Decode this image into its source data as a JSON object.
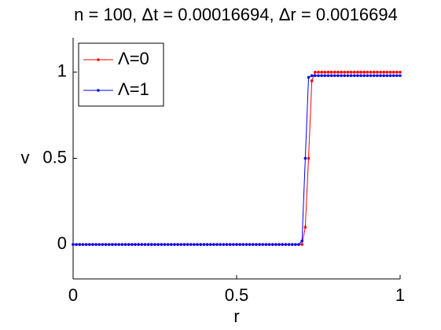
{
  "chart_data": {
    "type": "line",
    "title": "n = 100, Δt = 0.00016694, Δr = 0.0016694",
    "x_label": "r",
    "y_label": "v",
    "x": [
      0,
      0.01,
      0.02,
      0.03,
      0.04,
      0.05,
      0.06,
      0.07,
      0.08,
      0.09,
      0.1,
      0.11,
      0.12,
      0.13,
      0.14,
      0.15,
      0.16,
      0.17,
      0.18,
      0.19,
      0.2,
      0.21,
      0.22,
      0.23,
      0.24,
      0.25,
      0.26,
      0.27,
      0.28,
      0.29,
      0.3,
      0.31,
      0.32,
      0.33,
      0.34,
      0.35,
      0.36,
      0.37,
      0.38,
      0.39,
      0.4,
      0.41,
      0.42,
      0.43,
      0.44,
      0.45,
      0.46,
      0.47,
      0.48,
      0.49,
      0.5,
      0.51,
      0.52,
      0.53,
      0.54,
      0.55,
      0.56,
      0.57,
      0.58,
      0.59,
      0.6,
      0.61,
      0.62,
      0.63,
      0.64,
      0.65,
      0.66,
      0.67,
      0.68,
      0.69,
      0.7,
      0.71,
      0.72,
      0.73,
      0.74,
      0.75,
      0.76,
      0.77,
      0.78,
      0.79,
      0.8,
      0.81,
      0.82,
      0.83,
      0.84,
      0.85,
      0.86,
      0.87,
      0.88,
      0.89,
      0.9,
      0.91,
      0.92,
      0.93,
      0.94,
      0.95,
      0.96,
      0.97,
      0.98,
      0.99,
      1
    ],
    "series": [
      {
        "name": "Λ=0",
        "color": "#ff0000",
        "values": [
          0,
          0,
          0,
          0,
          0,
          0,
          0,
          0,
          0,
          0,
          0,
          0,
          0,
          0,
          0,
          0,
          0,
          0,
          0,
          0,
          0,
          0,
          0,
          0,
          0,
          0,
          0,
          0,
          0,
          0,
          0,
          0,
          0,
          0,
          0,
          0,
          0,
          0,
          0,
          0,
          0,
          0,
          0,
          0,
          0,
          0,
          0,
          0,
          0,
          0,
          0,
          0,
          0,
          0,
          0,
          0,
          0,
          0,
          0,
          0,
          0,
          0,
          0,
          0,
          0,
          0,
          0,
          0,
          0,
          0,
          0,
          0.1,
          0.5,
          0.95,
          1,
          1,
          1,
          1,
          1,
          1,
          1,
          1,
          1,
          1,
          1,
          1,
          1,
          1,
          1,
          1,
          1,
          1,
          1,
          1,
          1,
          1,
          1,
          1,
          1,
          1,
          1
        ]
      },
      {
        "name": "Λ=1",
        "color": "#0000ff",
        "values": [
          0,
          0,
          0,
          0,
          0,
          0,
          0,
          0,
          0,
          0,
          0,
          0,
          0,
          0,
          0,
          0,
          0,
          0,
          0,
          0,
          0,
          0,
          0,
          0,
          0,
          0,
          0,
          0,
          0,
          0,
          0,
          0,
          0,
          0,
          0,
          0,
          0,
          0,
          0,
          0,
          0,
          0,
          0,
          0,
          0,
          0,
          0,
          0,
          0,
          0,
          0,
          0,
          0,
          0,
          0,
          0,
          0,
          0,
          0,
          0,
          0,
          0,
          0,
          0,
          0,
          0,
          0,
          0,
          0,
          0,
          0.02,
          0.5,
          0.97,
          0.98,
          0.98,
          0.98,
          0.98,
          0.98,
          0.98,
          0.98,
          0.98,
          0.98,
          0.98,
          0.98,
          0.98,
          0.98,
          0.98,
          0.98,
          0.98,
          0.98,
          0.98,
          0.98,
          0.98,
          0.98,
          0.98,
          0.98,
          0.98,
          0.98,
          0.98,
          0.98,
          0.98
        ]
      }
    ],
    "xlim": [
      0,
      1
    ],
    "xticks": [
      0,
      0.5,
      1
    ],
    "ylim": [
      -0.2,
      1.2
    ],
    "yticks": [
      0,
      0.5,
      1
    ],
    "legend": "upper-left"
  }
}
